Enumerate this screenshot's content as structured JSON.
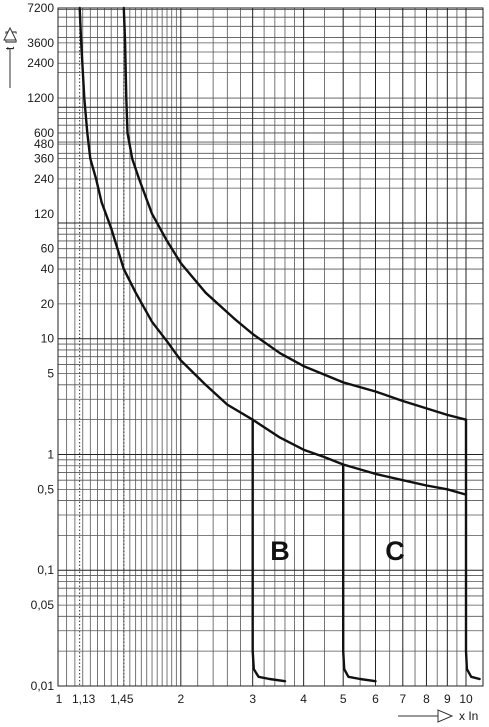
{
  "chart_data": {
    "type": "line",
    "title": "",
    "x_scale": "log",
    "y_scale": "log",
    "xlim": [
      1,
      10
    ],
    "ylim": [
      0.01,
      7200
    ],
    "grid": true,
    "xlabel": "x In",
    "ylabel": "t [s]",
    "x_tick_labels": [
      {
        "value": 1,
        "label": "1"
      },
      {
        "value": 1.13,
        "label": "1,13"
      },
      {
        "value": 1.45,
        "label": "1,45"
      },
      {
        "value": 2,
        "label": "2"
      },
      {
        "value": 3,
        "label": "3"
      },
      {
        "value": 4,
        "label": "4"
      },
      {
        "value": 5,
        "label": "5"
      },
      {
        "value": 6,
        "label": "6"
      },
      {
        "value": 7,
        "label": "7"
      },
      {
        "value": 8,
        "label": "8"
      },
      {
        "value": 9,
        "label": "9"
      },
      {
        "value": 10,
        "label": "10"
      }
    ],
    "y_tick_labels": [
      {
        "value": 7200,
        "label": "7200"
      },
      {
        "value": 3600,
        "label": "3600"
      },
      {
        "value": 2400,
        "label": "2400"
      },
      {
        "value": 1200,
        "label": "1200"
      },
      {
        "value": 600,
        "label": "600"
      },
      {
        "value": 480,
        "label": "480"
      },
      {
        "value": 360,
        "label": "360"
      },
      {
        "value": 240,
        "label": "240"
      },
      {
        "value": 120,
        "label": "120"
      },
      {
        "value": 60,
        "label": "60"
      },
      {
        "value": 40,
        "label": "40"
      },
      {
        "value": 20,
        "label": "20"
      },
      {
        "value": 10,
        "label": "10"
      },
      {
        "value": 5,
        "label": "5"
      },
      {
        "value": 1,
        "label": "1"
      },
      {
        "value": 0.5,
        "label": "0,5"
      },
      {
        "value": 0.1,
        "label": "0,1"
      },
      {
        "value": 0.05,
        "label": "0,05"
      },
      {
        "value": 0.01,
        "label": "0,01"
      }
    ],
    "reference_lines_x": [
      1.13,
      1.45
    ],
    "curve_labels": [
      {
        "text": "B",
        "x": 3.5,
        "y": 0.15
      },
      {
        "text": "C",
        "x": 6.7,
        "y": 0.15
      }
    ],
    "curves": [
      {
        "points": [
          [
            1.13,
            7200
          ],
          [
            1.14,
            3600
          ],
          [
            1.16,
            1200
          ],
          [
            1.18,
            600
          ],
          [
            1.2,
            360
          ],
          [
            1.24,
            240
          ],
          [
            1.28,
            150
          ],
          [
            1.35,
            90
          ],
          [
            1.45,
            40
          ],
          [
            1.55,
            25
          ],
          [
            1.7,
            14
          ],
          [
            1.85,
            9.5
          ],
          [
            2,
            6.5
          ],
          [
            2.3,
            4
          ],
          [
            2.6,
            2.7
          ],
          [
            3,
            2
          ]
        ]
      },
      {
        "points": [
          [
            1.45,
            7200
          ],
          [
            1.46,
            3600
          ],
          [
            1.47,
            1200
          ],
          [
            1.48,
            600
          ],
          [
            1.52,
            360
          ],
          [
            1.58,
            240
          ],
          [
            1.7,
            120
          ],
          [
            1.85,
            70
          ],
          [
            2,
            45
          ],
          [
            2.3,
            25
          ],
          [
            2.7,
            15
          ],
          [
            3,
            11
          ],
          [
            3.5,
            7.5
          ],
          [
            4,
            5.8
          ],
          [
            5,
            4.2
          ],
          [
            6,
            3.5
          ],
          [
            7,
            2.9
          ],
          [
            8,
            2.5
          ],
          [
            9,
            2.2
          ],
          [
            10,
            2
          ]
        ]
      },
      {
        "points": [
          [
            3,
            2
          ],
          [
            3.5,
            1.4
          ],
          [
            4,
            1.1
          ],
          [
            4.5,
            0.95
          ],
          [
            5,
            0.82
          ],
          [
            6,
            0.68
          ],
          [
            7,
            0.6
          ],
          [
            8,
            0.54
          ],
          [
            9,
            0.5
          ],
          [
            10,
            0.45
          ]
        ]
      },
      {
        "points": [
          [
            3,
            2
          ],
          [
            3,
            0.02
          ],
          [
            3.02,
            0.014
          ],
          [
            3.1,
            0.012
          ],
          [
            3.3,
            0.0115
          ],
          [
            3.6,
            0.011
          ]
        ]
      },
      {
        "points": [
          [
            5,
            0.82
          ],
          [
            5,
            0.02
          ],
          [
            5.03,
            0.014
          ],
          [
            5.15,
            0.012
          ],
          [
            5.5,
            0.0115
          ],
          [
            6,
            0.011
          ]
        ]
      },
      {
        "points": [
          [
            10,
            2
          ],
          [
            10,
            0.02
          ],
          [
            10.05,
            0.014
          ],
          [
            10.3,
            0.012
          ],
          [
            10.8,
            0.0115
          ]
        ]
      }
    ]
  }
}
